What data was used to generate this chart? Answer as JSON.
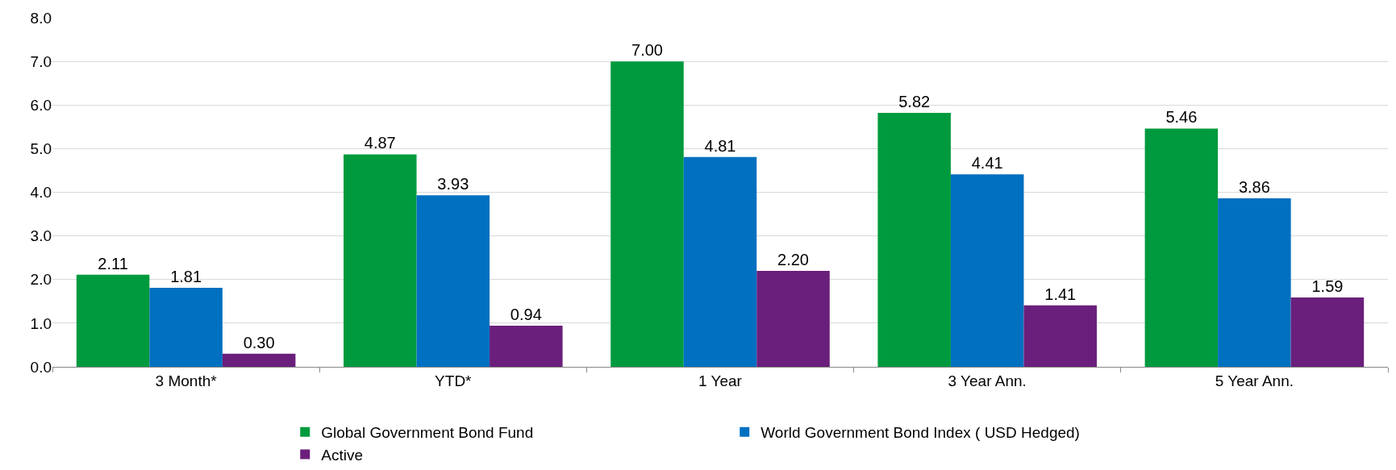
{
  "chart_data": {
    "type": "bar",
    "categories": [
      "3 Month*",
      "YTD*",
      "1 Year",
      "3 Year Ann.",
      "5 Year Ann."
    ],
    "series": [
      {
        "name": "Global Government Bond Fund",
        "color": "#009a3e",
        "values": [
          2.11,
          4.87,
          7.0,
          5.82,
          5.46
        ],
        "value_labels": [
          "2.11",
          "4.87",
          "7.00",
          "5.82",
          "5.46"
        ]
      },
      {
        "name": "World Government Bond Index ( USD Hedged)",
        "color": "#0070c0",
        "values": [
          1.81,
          3.93,
          4.81,
          4.41,
          3.86
        ],
        "value_labels": [
          "1.81",
          "3.93",
          "4.81",
          "4.41",
          "3.86"
        ]
      },
      {
        "name": "Active",
        "color": "#6b1f7c",
        "values": [
          0.3,
          0.94,
          2.2,
          1.41,
          1.59
        ],
        "value_labels": [
          "0.30",
          "0.94",
          "2.20",
          "1.41",
          "1.59"
        ]
      }
    ],
    "ylim": [
      0,
      8
    ],
    "yticks": [
      {
        "value": 0,
        "label": "0.0"
      },
      {
        "value": 1,
        "label": "1.0"
      },
      {
        "value": 2,
        "label": "2.0"
      },
      {
        "value": 3,
        "label": "3.0"
      },
      {
        "value": 4,
        "label": "4.0"
      },
      {
        "value": 5,
        "label": "5.0"
      },
      {
        "value": 6,
        "label": "6.0"
      },
      {
        "value": 7,
        "label": "7.0"
      },
      {
        "value": 8,
        "label": "8.0"
      }
    ],
    "grid": "y",
    "legend": "bottom"
  }
}
